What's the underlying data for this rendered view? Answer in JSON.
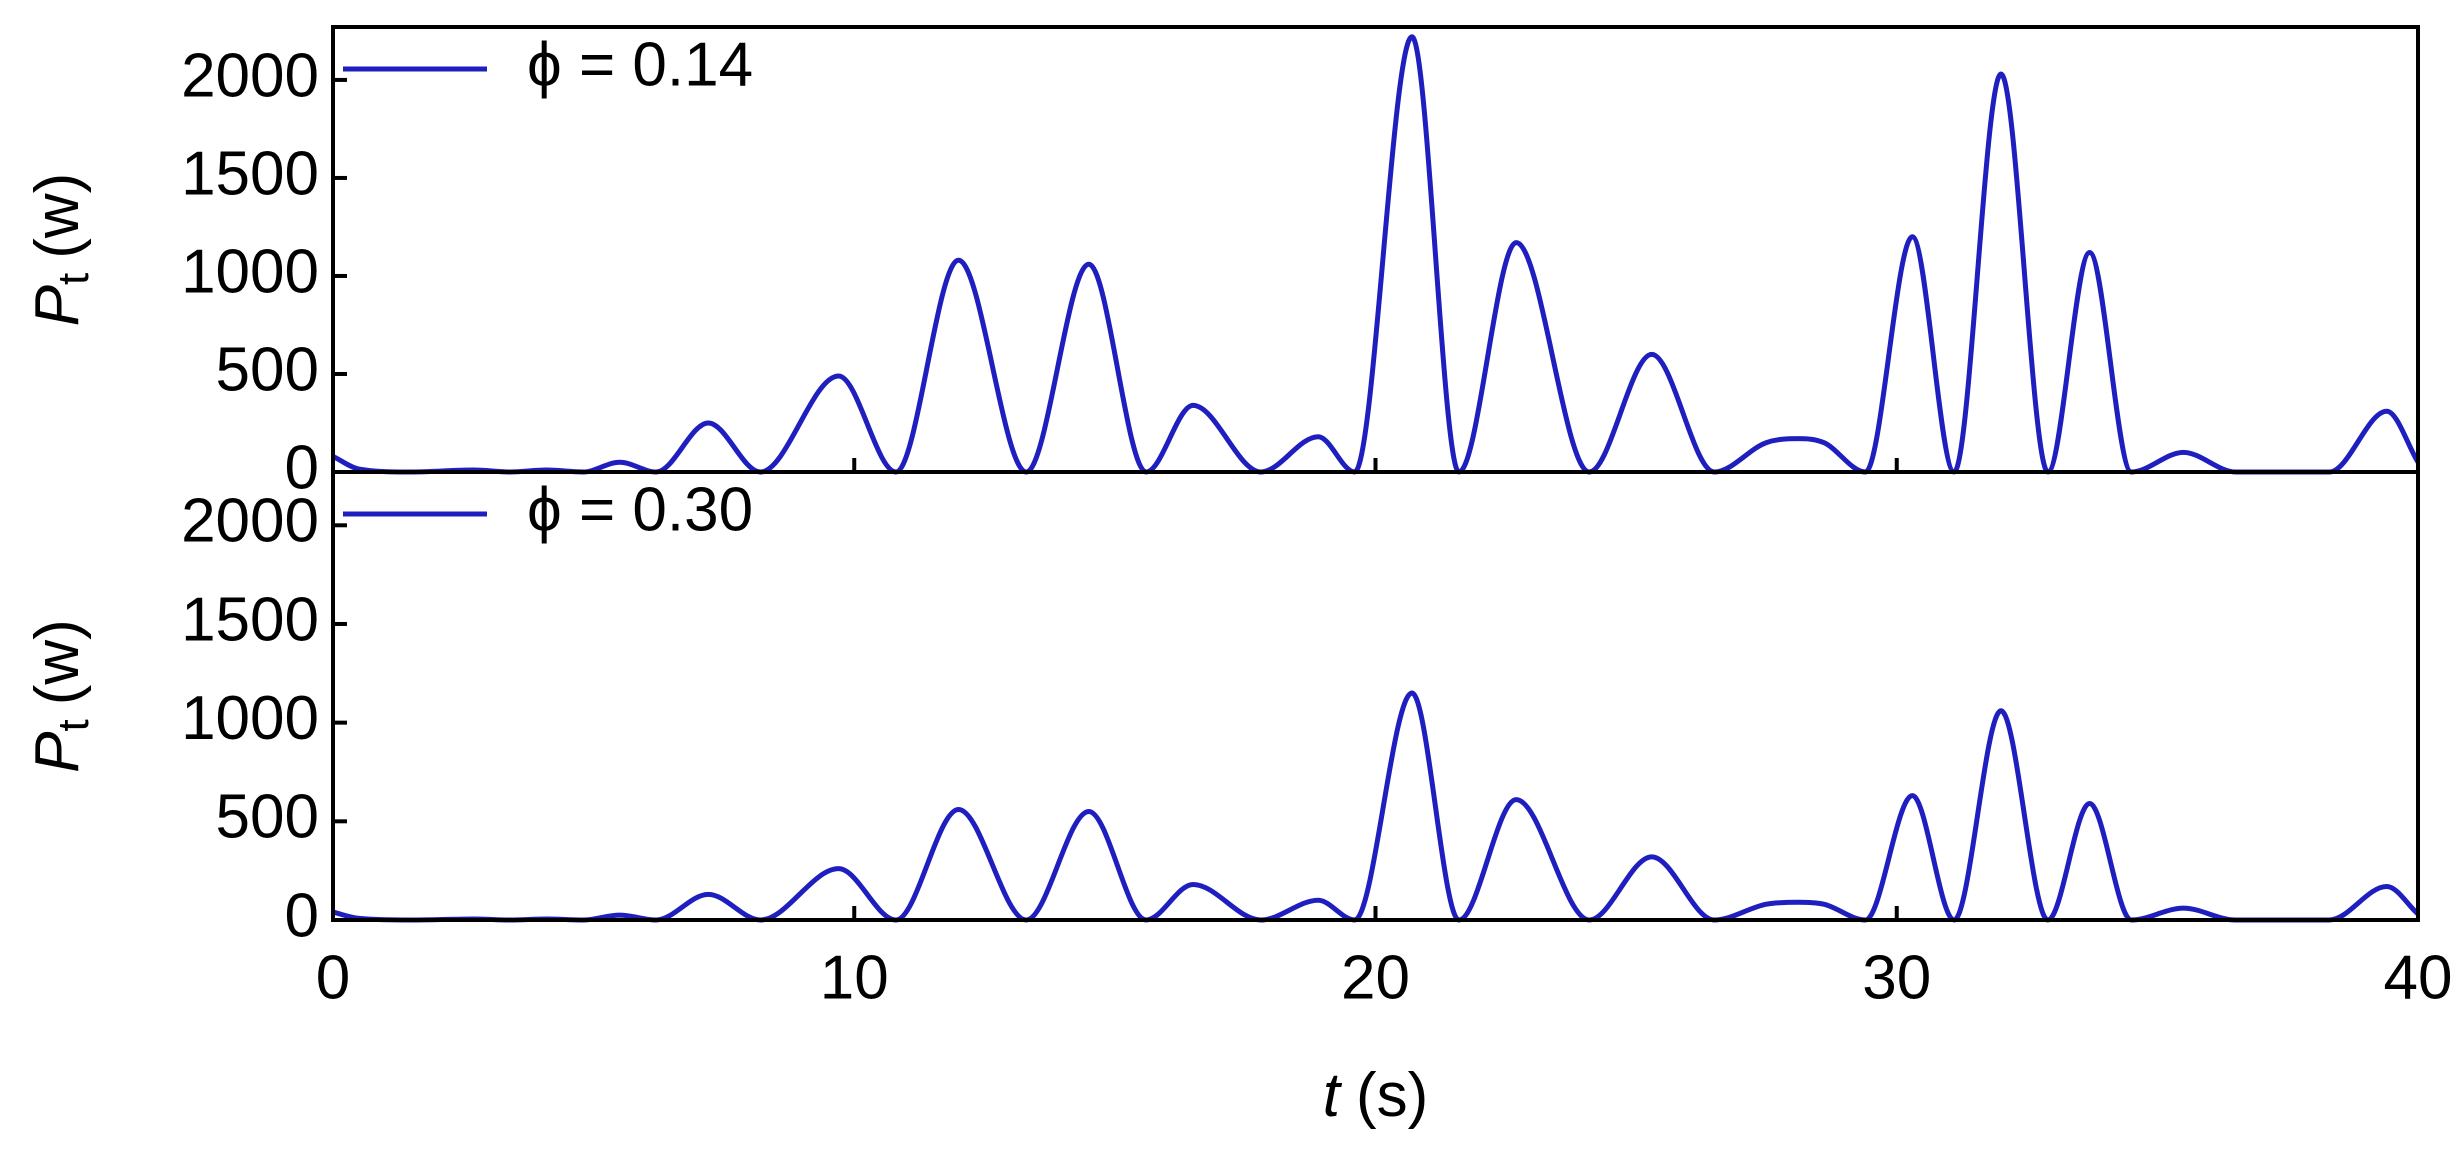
{
  "chart_data": [
    {
      "type": "line",
      "y_label": {
        "symbol": "P",
        "subscript": "t",
        "unit": "(w)"
      },
      "x": [
        0,
        0.5,
        1.5,
        2.7,
        3.4,
        4.1,
        4.8,
        5.5,
        6.2,
        7.2,
        8.2,
        9.7,
        10.8,
        12.0,
        13.3,
        14.5,
        15.6,
        16.5,
        17.8,
        18.9,
        19.6,
        20.7,
        21.6,
        22.7,
        24.1,
        25.3,
        26.5,
        27.5,
        28.1,
        28.6,
        29.4,
        30.3,
        31.1,
        32.0,
        32.9,
        33.7,
        34.5,
        35.5,
        36.5,
        38.3,
        39.4,
        40
      ],
      "series": [
        {
          "name": "ϕ = 0.14",
          "color": "#1f1fbf",
          "values": [
            80,
            15,
            0,
            10,
            0,
            10,
            0,
            50,
            0,
            250,
            0,
            490,
            0,
            1080,
            0,
            1060,
            0,
            340,
            0,
            180,
            0,
            2220,
            0,
            1170,
            0,
            600,
            0,
            150,
            170,
            150,
            0,
            1200,
            0,
            2030,
            0,
            1120,
            0,
            100,
            0,
            0,
            310,
            50
          ]
        }
      ],
      "xlim": [
        0,
        40
      ],
      "xticks": [
        0,
        10,
        20,
        30,
        40
      ],
      "ylim": [
        0,
        2270
      ],
      "yticks": [
        0,
        500,
        1000,
        1500,
        2000
      ],
      "legend": "upper left"
    },
    {
      "type": "line",
      "x_label": {
        "symbol": "t",
        "unit": "(s)"
      },
      "y_label": {
        "symbol": "P",
        "subscript": "t",
        "unit": "(w)"
      },
      "x": [
        0,
        0.5,
        1.5,
        2.7,
        3.4,
        4.1,
        4.8,
        5.5,
        6.2,
        7.2,
        8.2,
        9.7,
        10.8,
        12.0,
        13.3,
        14.5,
        15.6,
        16.5,
        17.8,
        18.9,
        19.6,
        20.7,
        21.6,
        22.7,
        24.1,
        25.3,
        26.5,
        27.5,
        28.1,
        28.6,
        29.4,
        30.3,
        31.1,
        32.0,
        32.9,
        33.7,
        34.5,
        35.5,
        36.5,
        38.3,
        39.4,
        40
      ],
      "series": [
        {
          "name": "ϕ = 0.30",
          "color": "#1f1fbf",
          "values": [
            40,
            8,
            0,
            5,
            0,
            5,
            0,
            25,
            0,
            130,
            0,
            260,
            0,
            560,
            0,
            550,
            0,
            180,
            0,
            100,
            0,
            1150,
            0,
            610,
            0,
            320,
            0,
            80,
            90,
            80,
            0,
            630,
            0,
            1060,
            0,
            590,
            0,
            60,
            0,
            0,
            170,
            30
          ]
        }
      ],
      "xlim": [
        0,
        40
      ],
      "xticks": [
        0,
        10,
        20,
        30,
        40
      ],
      "ylim": [
        0,
        2270
      ],
      "yticks": [
        0,
        500,
        1000,
        1500,
        2000
      ],
      "legend": "upper left"
    }
  ]
}
